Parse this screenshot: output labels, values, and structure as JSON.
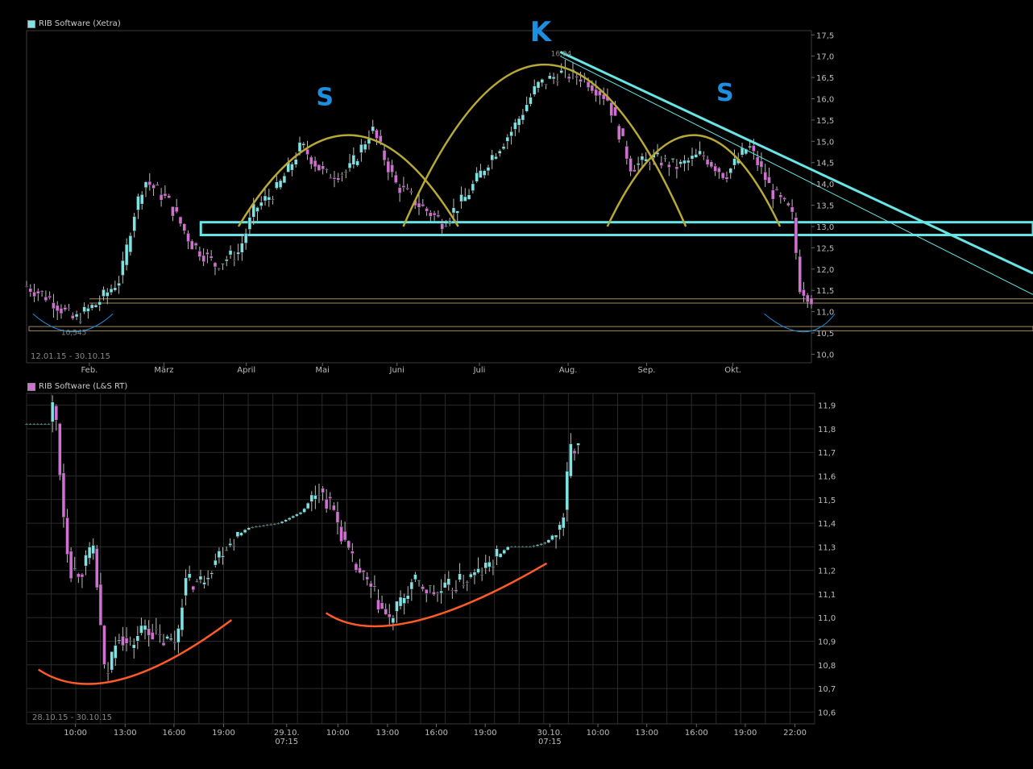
{
  "colors": {
    "background": "#000000",
    "grid": "#2a2a2a",
    "frame": "#3a3a3a",
    "up_candle": "#7fe3e3",
    "down_candle": "#d070d0",
    "wick": "#bbbbbb",
    "trend_cyan": "#66e6e6",
    "arc_gold": "#b8a838",
    "support_tan": "#a08a60",
    "pattern_blue": "#1c8fe0",
    "curve_orange": "#ff5a2a"
  },
  "chart_data": [
    {
      "type": "candlestick",
      "title": "RIB Software (Xetra)",
      "title_swatch_color": "#7fe3e3",
      "date_range": "12.01.15 - 30.10.15",
      "ylim": [
        9.8,
        17.6
      ],
      "y_ticks": [
        "17,5",
        "17,0",
        "16,5",
        "16,0",
        "15,5",
        "15,0",
        "14,5",
        "14,0",
        "13,5",
        "13,0",
        "12,5",
        "12,0",
        "11,5",
        "11,0",
        "10,5",
        "10,0"
      ],
      "x_ticks": [
        "Feb.",
        "März",
        "April",
        "Mai",
        "Juni",
        "Juli",
        "Aug.",
        "Sep.",
        "Okt."
      ],
      "annotations": {
        "high_label": "16,94",
        "low_label": "10,545",
        "pattern_left": "S",
        "pattern_head": "K",
        "pattern_right": "S"
      },
      "horizontal_levels": [
        {
          "kind": "band",
          "from": 12.8,
          "to": 13.1,
          "color": "#66e6e6"
        },
        {
          "kind": "line",
          "value": 11.2,
          "color": "#a08a60"
        },
        {
          "kind": "line",
          "value": 11.3,
          "color": "#a08a60"
        },
        {
          "kind": "band",
          "from": 10.55,
          "to": 10.65,
          "color": "#a08a60"
        }
      ],
      "trendlines": [
        {
          "from": [
            0.68,
            17.1
          ],
          "to": [
            1.0,
            11.9
          ],
          "width": 3
        },
        {
          "from": [
            0.68,
            17.0
          ],
          "to": [
            1.0,
            11.4
          ],
          "width": 1
        }
      ],
      "arcs": [
        {
          "start": 0.27,
          "peak": 0.41,
          "end": 0.55,
          "low": 13.0,
          "high": 15.2
        },
        {
          "start": 0.48,
          "peak": 0.66,
          "end": 0.84,
          "low": 13.0,
          "high": 16.9
        },
        {
          "start": 0.74,
          "peak": 0.85,
          "end": 0.96,
          "low": 13.0,
          "high": 15.2
        }
      ],
      "series_path": [
        [
          0.0,
          11.6
        ],
        [
          0.03,
          11.3
        ],
        [
          0.06,
          10.8
        ],
        [
          0.09,
          11.2
        ],
        [
          0.12,
          11.8
        ],
        [
          0.135,
          13.2
        ],
        [
          0.15,
          14.1
        ],
        [
          0.18,
          13.6
        ],
        [
          0.21,
          12.6
        ],
        [
          0.24,
          12.1
        ],
        [
          0.27,
          12.4
        ],
        [
          0.29,
          13.4
        ],
        [
          0.32,
          13.9
        ],
        [
          0.35,
          14.9
        ],
        [
          0.38,
          14.2
        ],
        [
          0.41,
          14.3
        ],
        [
          0.44,
          15.3
        ],
        [
          0.47,
          14.0
        ],
        [
          0.5,
          13.5
        ],
        [
          0.53,
          13.1
        ],
        [
          0.56,
          13.7
        ],
        [
          0.59,
          14.6
        ],
        [
          0.62,
          15.3
        ],
        [
          0.65,
          16.3
        ],
        [
          0.68,
          16.6
        ],
        [
          0.71,
          16.5
        ],
        [
          0.74,
          16.0
        ],
        [
          0.77,
          14.4
        ],
        [
          0.8,
          14.6
        ],
        [
          0.83,
          14.4
        ],
        [
          0.86,
          14.7
        ],
        [
          0.89,
          14.2
        ],
        [
          0.92,
          14.9
        ],
        [
          0.95,
          13.8
        ],
        [
          0.975,
          13.3
        ],
        [
          0.985,
          11.6
        ],
        [
          1.0,
          11.3
        ]
      ]
    },
    {
      "type": "candlestick",
      "title": "RIB Software (L&S RT)",
      "title_swatch_color": "#d070d0",
      "date_range": "28.10.15 - 30.10.15",
      "ylim": [
        10.55,
        11.95
      ],
      "y_ticks": [
        "11,9",
        "11,8",
        "11,7",
        "11,6",
        "11,5",
        "11,4",
        "11,3",
        "11,2",
        "11,1",
        "11,0",
        "10,9",
        "10,8",
        "10,7",
        "10,6"
      ],
      "x_ticks": [
        {
          "label": "10:00",
          "sub": ""
        },
        {
          "label": "13:00",
          "sub": ""
        },
        {
          "label": "16:00",
          "sub": ""
        },
        {
          "label": "19:00",
          "sub": ""
        },
        {
          "label": "29.10.",
          "sub": "07:15"
        },
        {
          "label": "10:00",
          "sub": ""
        },
        {
          "label": "13:00",
          "sub": ""
        },
        {
          "label": "16:00",
          "sub": ""
        },
        {
          "label": "19:00",
          "sub": ""
        },
        {
          "label": "30.10.",
          "sub": "07:15"
        },
        {
          "label": "10:00",
          "sub": ""
        },
        {
          "label": "13:00",
          "sub": ""
        },
        {
          "label": "16:00",
          "sub": ""
        },
        {
          "label": "19:00",
          "sub": ""
        },
        {
          "label": "22:00",
          "sub": ""
        }
      ],
      "series_path": [
        [
          0.0,
          11.82
        ],
        [
          0.03,
          11.82
        ],
        [
          0.035,
          11.95
        ],
        [
          0.045,
          11.5
        ],
        [
          0.055,
          11.2
        ],
        [
          0.07,
          11.2
        ],
        [
          0.085,
          11.3
        ],
        [
          0.1,
          10.72
        ],
        [
          0.115,
          10.95
        ],
        [
          0.13,
          10.87
        ],
        [
          0.15,
          10.97
        ],
        [
          0.17,
          10.9
        ],
        [
          0.19,
          10.9
        ],
        [
          0.2,
          11.15
        ],
        [
          0.22,
          11.15
        ],
        [
          0.25,
          11.3
        ],
        [
          0.28,
          11.38
        ],
        [
          0.32,
          11.4
        ],
        [
          0.35,
          11.45
        ],
        [
          0.37,
          11.55
        ],
        [
          0.39,
          11.45
        ],
        [
          0.41,
          11.25
        ],
        [
          0.44,
          11.1
        ],
        [
          0.46,
          10.98
        ],
        [
          0.49,
          11.15
        ],
        [
          0.52,
          11.1
        ],
        [
          0.55,
          11.15
        ],
        [
          0.58,
          11.2
        ],
        [
          0.61,
          11.3
        ],
        [
          0.64,
          11.3
        ],
        [
          0.66,
          11.32
        ],
        [
          0.68,
          11.4
        ],
        [
          0.69,
          11.72
        ],
        [
          0.7,
          11.72
        ]
      ],
      "series_end_fraction": 0.7,
      "curves": [
        {
          "points": [
            [
              0.015,
              10.78
            ],
            [
              0.1,
              10.65
            ],
            [
              0.26,
              10.99
            ]
          ]
        },
        {
          "points": [
            [
              0.38,
              11.02
            ],
            [
              0.46,
              10.9
            ],
            [
              0.66,
              11.23
            ]
          ]
        }
      ]
    }
  ]
}
